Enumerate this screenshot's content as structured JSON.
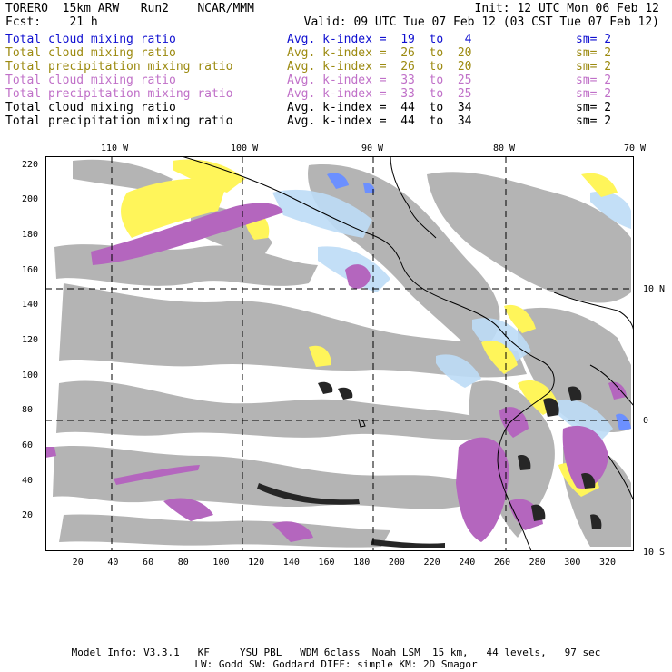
{
  "header": {
    "model": "TORERO  15km ARW   Run2    NCAR/MMM",
    "init": "Init: 12 UTC Mon 06 Feb 12",
    "fcst": "Fcst:    21 h",
    "valid": "Valid: 09 UTC Tue 07 Feb 12 (03 CST Tue 07 Feb 12)"
  },
  "legend": [
    {
      "field": "Total cloud mixing ratio",
      "kindex": "Avg. k-index =  19  to   4",
      "sm": "sm= 2",
      "color": "#1010d0"
    },
    {
      "field": "Total cloud mixing ratio",
      "kindex": "Avg. k-index =  26  to  20",
      "sm": "sm= 2",
      "color": "#9c8a10"
    },
    {
      "field": "Total precipitation mixing ratio",
      "kindex": "Avg. k-index =  26  to  20",
      "sm": "sm= 2",
      "color": "#9c8a10"
    },
    {
      "field": "Total cloud mixing ratio",
      "kindex": "Avg. k-index =  33  to  25",
      "sm": "sm= 2",
      "color": "#c070c8"
    },
    {
      "field": "Total precipitation mixing ratio",
      "kindex": "Avg. k-index =  33  to  25",
      "sm": "sm= 2",
      "color": "#c070c8"
    },
    {
      "field": "Total cloud mixing ratio",
      "kindex": "Avg. k-index =  44  to  34",
      "sm": "sm= 2",
      "color": "#000000"
    },
    {
      "field": "Total precipitation mixing ratio",
      "kindex": "Avg. k-index =  44  to  34",
      "sm": "sm= 2",
      "color": "#000000"
    }
  ],
  "map": {
    "lon_labels": [
      "110 W",
      "100 W",
      "90 W",
      "80 W",
      "70 W"
    ],
    "lat_labels": [
      "10 N",
      "0",
      "10 S"
    ],
    "x_ticks": [
      "20",
      "40",
      "60",
      "80",
      "100",
      "120",
      "140",
      "160",
      "180",
      "200",
      "220",
      "240",
      "260",
      "280",
      "300",
      "320"
    ],
    "y_ticks": [
      "220",
      "200",
      "180",
      "160",
      "140",
      "120",
      "100",
      "80",
      "60",
      "40",
      "20"
    ],
    "colors": {
      "gray": "#b4b4b4",
      "yellow": "#fff55a",
      "lightblue": "#bcdcf6",
      "blue": "#6c90ff",
      "purple": "#b466be",
      "dark": "#262626"
    }
  },
  "footer": {
    "line1": "Model Info: V3.3.1   KF     YSU PBL   WDM 6class  Noah LSM  15 km,   44 levels,   97 sec",
    "line2": "LW: Godd SW: Goddard DIFF: simple KM: 2D Smagor"
  }
}
